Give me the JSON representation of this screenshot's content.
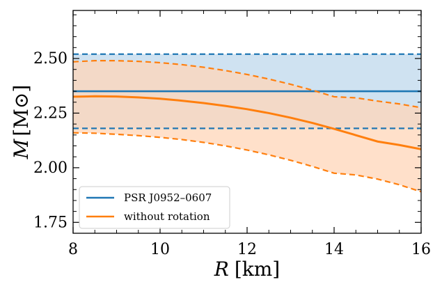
{
  "chart_data": {
    "type": "line",
    "xlabel_var": "R",
    "xlabel_unit": "[km]",
    "ylabel_var": "M",
    "ylabel_unit": "[M⊙]",
    "xlim": [
      8,
      16
    ],
    "ylim": [
      1.7,
      2.72
    ],
    "xticks": [
      8,
      10,
      12,
      14,
      16
    ],
    "yticks": [
      1.75,
      2.0,
      2.25,
      2.5
    ],
    "xtick_labels": [
      "8",
      "10",
      "12",
      "14",
      "16"
    ],
    "ytick_labels": [
      "1.75",
      "2.00",
      "2.25",
      "2.50"
    ],
    "grid": false,
    "legend_position": "lower-left",
    "series": [
      {
        "name": "PSR J0952–0607",
        "color": "#1f77b4",
        "band_color": "#cfe2f1",
        "x": [
          8,
          16
        ],
        "central": [
          2.35,
          2.35
        ],
        "upper": [
          2.52,
          2.52
        ],
        "lower": [
          2.18,
          2.18
        ]
      },
      {
        "name": "without rotation",
        "color": "#ff7f0e",
        "band_color": "#ffd6b8",
        "x": [
          8,
          8.5,
          9,
          9.5,
          10,
          10.5,
          11,
          11.5,
          12,
          12.5,
          13,
          13.5,
          14,
          14.5,
          15,
          15.5,
          16
        ],
        "central": [
          2.325,
          2.327,
          2.326,
          2.322,
          2.316,
          2.307,
          2.296,
          2.283,
          2.268,
          2.25,
          2.229,
          2.205,
          2.178,
          2.149,
          2.12,
          2.104,
          2.085
        ],
        "upper": [
          2.485,
          2.49,
          2.49,
          2.487,
          2.481,
          2.472,
          2.46,
          2.445,
          2.427,
          2.406,
          2.382,
          2.355,
          2.325,
          2.32,
          2.305,
          2.292,
          2.275
        ],
        "lower": [
          2.16,
          2.158,
          2.153,
          2.147,
          2.139,
          2.129,
          2.116,
          2.1,
          2.081,
          2.059,
          2.034,
          2.006,
          1.975,
          1.967,
          1.948,
          1.922,
          1.89
        ]
      }
    ]
  }
}
